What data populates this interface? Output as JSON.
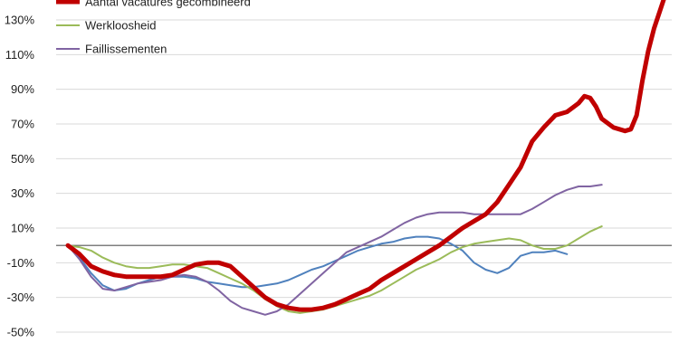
{
  "chart_data": {
    "type": "line",
    "title": "",
    "xlabel": "",
    "ylabel": "",
    "ylim": [
      -55,
      145
    ],
    "yticks": [
      130,
      110,
      90,
      70,
      50,
      30,
      10,
      -10,
      -30,
      -50
    ],
    "ytick_labels": [
      "130%",
      "110%",
      "90%",
      "70%",
      "50%",
      "30%",
      "10%",
      "-10%",
      "-30%",
      "-50%"
    ],
    "grid": true,
    "legend_position": "top-left",
    "x_index_range": [
      0,
      100
    ],
    "series": [
      {
        "name": "Aantal vacatures gecombineerd",
        "color": "#c00000",
        "width": 5,
        "points": [
          [
            0,
            0
          ],
          [
            2,
            -5
          ],
          [
            4,
            -12
          ],
          [
            6,
            -15
          ],
          [
            8,
            -17
          ],
          [
            10,
            -18
          ],
          [
            12,
            -18
          ],
          [
            14,
            -18
          ],
          [
            16,
            -18
          ],
          [
            18,
            -17
          ],
          [
            20,
            -14
          ],
          [
            22,
            -11
          ],
          [
            24,
            -10
          ],
          [
            26,
            -10
          ],
          [
            28,
            -12
          ],
          [
            30,
            -18
          ],
          [
            32,
            -24
          ],
          [
            34,
            -30
          ],
          [
            36,
            -34
          ],
          [
            38,
            -36
          ],
          [
            40,
            -37
          ],
          [
            42,
            -37
          ],
          [
            44,
            -36
          ],
          [
            46,
            -34
          ],
          [
            48,
            -31
          ],
          [
            50,
            -28
          ],
          [
            52,
            -25
          ],
          [
            54,
            -20
          ],
          [
            56,
            -16
          ],
          [
            58,
            -12
          ],
          [
            60,
            -8
          ],
          [
            62,
            -4
          ],
          [
            64,
            0
          ],
          [
            66,
            5
          ],
          [
            68,
            10
          ],
          [
            70,
            14
          ],
          [
            72,
            18
          ],
          [
            74,
            25
          ],
          [
            76,
            35
          ],
          [
            78,
            45
          ],
          [
            80,
            60
          ],
          [
            82,
            68
          ],
          [
            84,
            75
          ],
          [
            86,
            77
          ],
          [
            88,
            82
          ],
          [
            89,
            86
          ],
          [
            90,
            85
          ],
          [
            91,
            80
          ],
          [
            92,
            73
          ],
          [
            94,
            68
          ],
          [
            96,
            66
          ],
          [
            97,
            67
          ],
          [
            98,
            75
          ],
          [
            99,
            95
          ],
          [
            100,
            112
          ],
          [
            101,
            125
          ],
          [
            102,
            135
          ],
          [
            103,
            145
          ]
        ]
      },
      {
        "name": "Werkloosheid",
        "color": "#9bbb59",
        "width": 2,
        "points": [
          [
            0,
            0
          ],
          [
            2,
            -1
          ],
          [
            4,
            -3
          ],
          [
            6,
            -7
          ],
          [
            8,
            -10
          ],
          [
            10,
            -12
          ],
          [
            12,
            -13
          ],
          [
            14,
            -13
          ],
          [
            16,
            -12
          ],
          [
            18,
            -11
          ],
          [
            20,
            -11
          ],
          [
            22,
            -12
          ],
          [
            24,
            -13
          ],
          [
            26,
            -16
          ],
          [
            28,
            -19
          ],
          [
            30,
            -22
          ],
          [
            32,
            -26
          ],
          [
            34,
            -31
          ],
          [
            36,
            -35
          ],
          [
            38,
            -38
          ],
          [
            40,
            -39
          ],
          [
            42,
            -38
          ],
          [
            44,
            -37
          ],
          [
            46,
            -35
          ],
          [
            48,
            -33
          ],
          [
            50,
            -31
          ],
          [
            52,
            -29
          ],
          [
            54,
            -26
          ],
          [
            56,
            -22
          ],
          [
            58,
            -18
          ],
          [
            60,
            -14
          ],
          [
            62,
            -11
          ],
          [
            64,
            -8
          ],
          [
            66,
            -4
          ],
          [
            68,
            -1
          ],
          [
            70,
            1
          ],
          [
            72,
            2
          ],
          [
            74,
            3
          ],
          [
            76,
            4
          ],
          [
            78,
            3
          ],
          [
            80,
            0
          ],
          [
            82,
            -2
          ],
          [
            84,
            -2
          ],
          [
            86,
            0
          ],
          [
            88,
            4
          ],
          [
            90,
            8
          ],
          [
            92,
            11
          ]
        ]
      },
      {
        "name": "Faillissementen",
        "color": "#8064a2",
        "width": 2,
        "points": [
          [
            0,
            0
          ],
          [
            2,
            -8
          ],
          [
            4,
            -18
          ],
          [
            6,
            -25
          ],
          [
            8,
            -26
          ],
          [
            10,
            -24
          ],
          [
            12,
            -22
          ],
          [
            14,
            -21
          ],
          [
            16,
            -20
          ],
          [
            18,
            -18
          ],
          [
            20,
            -17
          ],
          [
            22,
            -18
          ],
          [
            24,
            -21
          ],
          [
            26,
            -26
          ],
          [
            28,
            -32
          ],
          [
            30,
            -36
          ],
          [
            32,
            -38
          ],
          [
            34,
            -40
          ],
          [
            36,
            -38
          ],
          [
            38,
            -34
          ],
          [
            40,
            -28
          ],
          [
            42,
            -22
          ],
          [
            44,
            -16
          ],
          [
            46,
            -10
          ],
          [
            48,
            -4
          ],
          [
            50,
            -1
          ],
          [
            52,
            2
          ],
          [
            54,
            5
          ],
          [
            56,
            9
          ],
          [
            58,
            13
          ],
          [
            60,
            16
          ],
          [
            62,
            18
          ],
          [
            64,
            19
          ],
          [
            66,
            19
          ],
          [
            68,
            19
          ],
          [
            70,
            18
          ],
          [
            72,
            18
          ],
          [
            74,
            18
          ],
          [
            76,
            18
          ],
          [
            78,
            18
          ],
          [
            80,
            21
          ],
          [
            82,
            25
          ],
          [
            84,
            29
          ],
          [
            86,
            32
          ],
          [
            88,
            34
          ],
          [
            90,
            34
          ],
          [
            92,
            35
          ]
        ]
      },
      {
        "name": "",
        "color": "#4f81bd",
        "width": 2,
        "points": [
          [
            0,
            0
          ],
          [
            2,
            -7
          ],
          [
            4,
            -16
          ],
          [
            6,
            -23
          ],
          [
            8,
            -26
          ],
          [
            10,
            -25
          ],
          [
            12,
            -22
          ],
          [
            14,
            -20
          ],
          [
            16,
            -18
          ],
          [
            18,
            -18
          ],
          [
            20,
            -18
          ],
          [
            22,
            -19
          ],
          [
            24,
            -21
          ],
          [
            26,
            -22
          ],
          [
            28,
            -23
          ],
          [
            30,
            -24
          ],
          [
            32,
            -24
          ],
          [
            34,
            -23
          ],
          [
            36,
            -22
          ],
          [
            38,
            -20
          ],
          [
            40,
            -17
          ],
          [
            42,
            -14
          ],
          [
            44,
            -12
          ],
          [
            46,
            -9
          ],
          [
            48,
            -6
          ],
          [
            50,
            -3
          ],
          [
            52,
            -1
          ],
          [
            54,
            1
          ],
          [
            56,
            2
          ],
          [
            58,
            4
          ],
          [
            60,
            5
          ],
          [
            62,
            5
          ],
          [
            64,
            4
          ],
          [
            66,
            1
          ],
          [
            68,
            -3
          ],
          [
            70,
            -10
          ],
          [
            72,
            -14
          ],
          [
            74,
            -16
          ],
          [
            76,
            -13
          ],
          [
            78,
            -6
          ],
          [
            80,
            -4
          ],
          [
            82,
            -4
          ],
          [
            84,
            -3
          ],
          [
            86,
            -5
          ]
        ]
      }
    ]
  }
}
